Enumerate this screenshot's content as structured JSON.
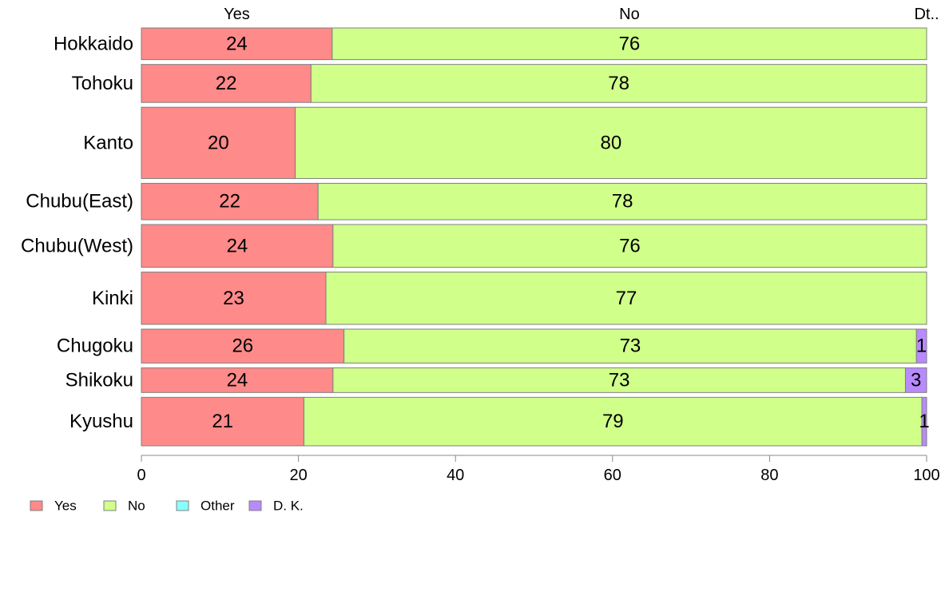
{
  "chart_data": {
    "type": "bar",
    "orientation": "horizontal",
    "stacked": true,
    "categories": [
      "Hokkaido",
      "Tohoku",
      "Kanto",
      "Chubu(East)",
      "Chubu(West)",
      "Kinki",
      "Chugoku",
      "Shikoku",
      "Kyushu"
    ],
    "series": [
      {
        "name": "Yes",
        "color": "#ff8a8a",
        "values": [
          24.3,
          21.6,
          19.6,
          22.5,
          24.4,
          23.5,
          25.8,
          24.4,
          20.7
        ]
      },
      {
        "name": "No",
        "color": "#d0ff8a",
        "values": [
          75.7,
          78.4,
          80.4,
          77.5,
          75.6,
          76.5,
          72.9,
          72.9,
          78.7
        ]
      },
      {
        "name": "Other",
        "color": "#8affff",
        "values": [
          0,
          0,
          0,
          0,
          0,
          0,
          0,
          0,
          0
        ]
      },
      {
        "name": "D. K.",
        "color": "#b98aff",
        "values": [
          0,
          0,
          0,
          0,
          0,
          0,
          1.3,
          2.7,
          0.6
        ]
      }
    ],
    "data_labels": [
      [
        "24",
        "76",
        "",
        ""
      ],
      [
        "22",
        "78",
        "",
        ""
      ],
      [
        "20",
        "80",
        "",
        ""
      ],
      [
        "22",
        "78",
        "",
        ""
      ],
      [
        "24",
        "76",
        "",
        ""
      ],
      [
        "23",
        "77",
        "",
        ""
      ],
      [
        "26",
        "73",
        "",
        "1"
      ],
      [
        "24",
        "73",
        "",
        "3"
      ],
      [
        "21",
        "79",
        "",
        "1"
      ]
    ],
    "top_labels": [
      "Yes",
      "No",
      "Dt.."
    ],
    "x_ticks": [
      0,
      20,
      40,
      60,
      80,
      100
    ],
    "xlim": [
      0,
      100
    ],
    "legend_position": "bottom-left",
    "grid": false
  }
}
